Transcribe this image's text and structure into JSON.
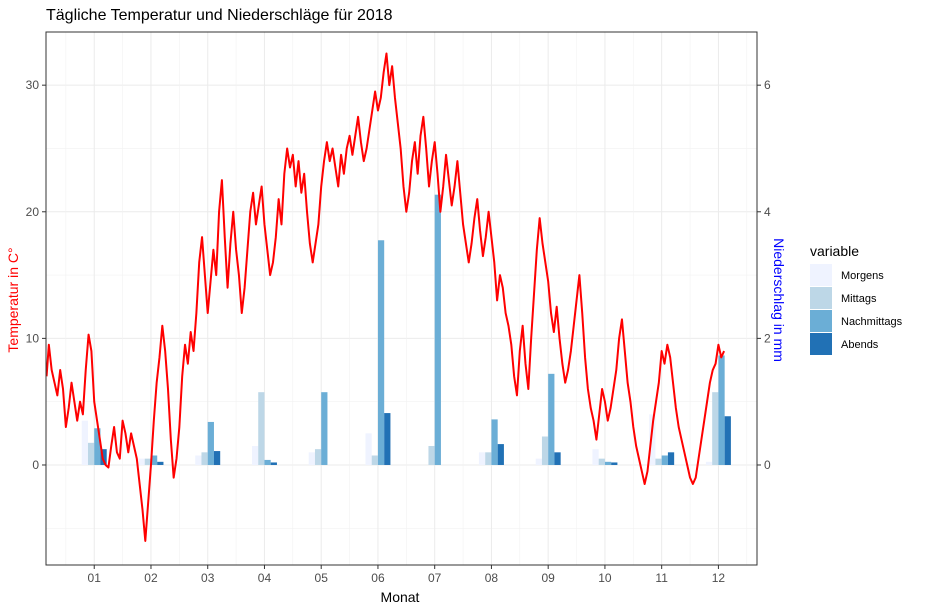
{
  "chart_data": {
    "type": "bar+line",
    "title": "Tägliche Temperatur und Niederschläge für 2018",
    "xlabel": "Monat",
    "ylabel_left": "Temperatur in C°",
    "ylabel_right": "Niederschlag in mm",
    "ylabel_left_color": "#ff0000",
    "ylabel_right_color": "#0000ff",
    "categories": [
      "01",
      "02",
      "03",
      "04",
      "05",
      "06",
      "07",
      "08",
      "09",
      "10",
      "11",
      "12"
    ],
    "x_range": [
      0.15,
      12.68
    ],
    "y_left_range": [
      -7.9,
      34.2
    ],
    "y_left_ticks": [
      0,
      10,
      20,
      30
    ],
    "y_right_range": [
      -1.58,
      6.84
    ],
    "y_right_ticks": [
      0,
      2,
      4,
      6
    ],
    "grid": true,
    "legend": {
      "title": "variable",
      "position": "right",
      "entries": [
        "Morgens",
        "Mittags",
        "Nachmittags",
        "Abends"
      ]
    },
    "bar_series": [
      {
        "name": "Morgens",
        "color": "#eff3ff",
        "values": [
          0.7,
          0.1,
          0.15,
          0.3,
          0.2,
          0.5,
          0.0,
          0.2,
          0.1,
          0.25,
          0.8,
          0.05
        ]
      },
      {
        "name": "Mittags",
        "color": "#bdd7e7",
        "values": [
          0.35,
          0.1,
          0.2,
          1.15,
          0.25,
          0.15,
          0.3,
          0.2,
          0.45,
          0.1,
          0.1,
          1.15
        ]
      },
      {
        "name": "Nachmittags",
        "color": "#6baed6",
        "values": [
          0.58,
          0.15,
          0.68,
          0.08,
          1.15,
          3.55,
          4.27,
          0.72,
          1.44,
          0.05,
          0.15,
          1.73
        ]
      },
      {
        "name": "Abends",
        "color": "#2171b5",
        "values": [
          0.25,
          0.05,
          0.22,
          0.04,
          0.0,
          0.82,
          0.0,
          0.33,
          0.2,
          0.04,
          0.2,
          0.77
        ]
      }
    ],
    "line_series": {
      "name": "Temperatur",
      "color": "#ff0000",
      "points": [
        [
          0.16,
          7.0
        ],
        [
          0.2,
          9.5
        ],
        [
          0.25,
          7.5
        ],
        [
          0.3,
          6.5
        ],
        [
          0.35,
          5.5
        ],
        [
          0.4,
          7.5
        ],
        [
          0.45,
          6.0
        ],
        [
          0.5,
          3.0
        ],
        [
          0.55,
          4.5
        ],
        [
          0.6,
          6.5
        ],
        [
          0.65,
          5.0
        ],
        [
          0.7,
          3.5
        ],
        [
          0.75,
          5.0
        ],
        [
          0.8,
          4.0
        ],
        [
          0.85,
          7.5
        ],
        [
          0.9,
          10.3
        ],
        [
          0.95,
          9.0
        ],
        [
          1.0,
          5.0
        ],
        [
          1.05,
          3.5
        ],
        [
          1.1,
          2.0
        ],
        [
          1.15,
          0.5
        ],
        [
          1.2,
          0.0
        ],
        [
          1.25,
          -0.2
        ],
        [
          1.3,
          1.5
        ],
        [
          1.35,
          3.0
        ],
        [
          1.4,
          1.0
        ],
        [
          1.45,
          0.5
        ],
        [
          1.5,
          3.5
        ],
        [
          1.55,
          2.5
        ],
        [
          1.6,
          1.0
        ],
        [
          1.65,
          2.5
        ],
        [
          1.7,
          1.5
        ],
        [
          1.75,
          0.5
        ],
        [
          1.8,
          -1.5
        ],
        [
          1.85,
          -3.5
        ],
        [
          1.9,
          -6.0
        ],
        [
          1.95,
          -3.0
        ],
        [
          2.0,
          0.0
        ],
        [
          2.05,
          3.5
        ],
        [
          2.1,
          6.5
        ],
        [
          2.15,
          8.5
        ],
        [
          2.2,
          11.0
        ],
        [
          2.25,
          9.0
        ],
        [
          2.3,
          6.0
        ],
        [
          2.35,
          2.0
        ],
        [
          2.4,
          -1.0
        ],
        [
          2.45,
          0.5
        ],
        [
          2.5,
          3.0
        ],
        [
          2.55,
          7.0
        ],
        [
          2.6,
          9.5
        ],
        [
          2.65,
          8.0
        ],
        [
          2.7,
          10.5
        ],
        [
          2.75,
          9.0
        ],
        [
          2.8,
          12.0
        ],
        [
          2.85,
          16.0
        ],
        [
          2.9,
          18.0
        ],
        [
          2.95,
          15.0
        ],
        [
          3.0,
          12.0
        ],
        [
          3.05,
          14.5
        ],
        [
          3.1,
          17.0
        ],
        [
          3.15,
          15.0
        ],
        [
          3.2,
          20.0
        ],
        [
          3.25,
          22.5
        ],
        [
          3.3,
          18.0
        ],
        [
          3.35,
          14.0
        ],
        [
          3.4,
          17.5
        ],
        [
          3.45,
          20.0
        ],
        [
          3.5,
          17.0
        ],
        [
          3.55,
          15.0
        ],
        [
          3.6,
          12.0
        ],
        [
          3.65,
          14.0
        ],
        [
          3.7,
          17.0
        ],
        [
          3.75,
          20.0
        ],
        [
          3.8,
          21.5
        ],
        [
          3.85,
          19.0
        ],
        [
          3.9,
          20.5
        ],
        [
          3.95,
          22.0
        ],
        [
          4.0,
          19.0
        ],
        [
          4.05,
          17.0
        ],
        [
          4.1,
          15.0
        ],
        [
          4.15,
          16.0
        ],
        [
          4.2,
          18.0
        ],
        [
          4.25,
          21.0
        ],
        [
          4.3,
          19.0
        ],
        [
          4.35,
          23.0
        ],
        [
          4.4,
          25.0
        ],
        [
          4.45,
          23.5
        ],
        [
          4.5,
          24.5
        ],
        [
          4.55,
          22.0
        ],
        [
          4.6,
          24.0
        ],
        [
          4.65,
          21.5
        ],
        [
          4.7,
          23.0
        ],
        [
          4.75,
          20.0
        ],
        [
          4.8,
          17.5
        ],
        [
          4.85,
          16.0
        ],
        [
          4.9,
          17.5
        ],
        [
          4.95,
          19.0
        ],
        [
          5.0,
          22.0
        ],
        [
          5.05,
          24.0
        ],
        [
          5.1,
          25.5
        ],
        [
          5.15,
          24.0
        ],
        [
          5.2,
          25.0
        ],
        [
          5.25,
          23.5
        ],
        [
          5.3,
          22.0
        ],
        [
          5.35,
          24.5
        ],
        [
          5.4,
          23.0
        ],
        [
          5.45,
          25.0
        ],
        [
          5.5,
          26.0
        ],
        [
          5.55,
          24.5
        ],
        [
          5.6,
          26.0
        ],
        [
          5.65,
          27.5
        ],
        [
          5.7,
          25.5
        ],
        [
          5.75,
          24.0
        ],
        [
          5.8,
          25.0
        ],
        [
          5.85,
          26.5
        ],
        [
          5.9,
          28.0
        ],
        [
          5.95,
          29.5
        ],
        [
          6.0,
          28.0
        ],
        [
          6.05,
          29.0
        ],
        [
          6.1,
          31.0
        ],
        [
          6.15,
          32.5
        ],
        [
          6.2,
          30.0
        ],
        [
          6.25,
          31.5
        ],
        [
          6.3,
          29.0
        ],
        [
          6.35,
          27.0
        ],
        [
          6.4,
          25.0
        ],
        [
          6.45,
          22.0
        ],
        [
          6.5,
          20.0
        ],
        [
          6.55,
          21.5
        ],
        [
          6.6,
          24.0
        ],
        [
          6.65,
          25.5
        ],
        [
          6.7,
          23.0
        ],
        [
          6.75,
          26.0
        ],
        [
          6.8,
          27.5
        ],
        [
          6.85,
          25.0
        ],
        [
          6.9,
          22.0
        ],
        [
          6.95,
          24.0
        ],
        [
          7.0,
          25.5
        ],
        [
          7.05,
          23.0
        ],
        [
          7.1,
          20.0
        ],
        [
          7.15,
          22.0
        ],
        [
          7.2,
          24.5
        ],
        [
          7.25,
          22.5
        ],
        [
          7.3,
          20.5
        ],
        [
          7.35,
          22.0
        ],
        [
          7.4,
          24.0
        ],
        [
          7.45,
          21.5
        ],
        [
          7.5,
          19.0
        ],
        [
          7.55,
          17.5
        ],
        [
          7.6,
          16.0
        ],
        [
          7.65,
          17.5
        ],
        [
          7.7,
          19.5
        ],
        [
          7.75,
          21.0
        ],
        [
          7.8,
          18.5
        ],
        [
          7.85,
          16.5
        ],
        [
          7.9,
          18.0
        ],
        [
          7.95,
          20.0
        ],
        [
          8.0,
          18.0
        ],
        [
          8.05,
          16.0
        ],
        [
          8.1,
          13.0
        ],
        [
          8.15,
          15.0
        ],
        [
          8.2,
          14.0
        ],
        [
          8.25,
          12.0
        ],
        [
          8.3,
          11.0
        ],
        [
          8.35,
          9.5
        ],
        [
          8.4,
          7.0
        ],
        [
          8.45,
          5.5
        ],
        [
          8.5,
          9.0
        ],
        [
          8.55,
          11.0
        ],
        [
          8.6,
          8.0
        ],
        [
          8.65,
          6.0
        ],
        [
          8.7,
          10.0
        ],
        [
          8.75,
          13.5
        ],
        [
          8.8,
          17.0
        ],
        [
          8.85,
          19.5
        ],
        [
          8.9,
          17.5
        ],
        [
          8.95,
          16.0
        ],
        [
          9.0,
          14.5
        ],
        [
          9.05,
          12.0
        ],
        [
          9.1,
          10.5
        ],
        [
          9.15,
          12.5
        ],
        [
          9.2,
          10.0
        ],
        [
          9.25,
          8.0
        ],
        [
          9.3,
          6.5
        ],
        [
          9.35,
          7.5
        ],
        [
          9.4,
          9.0
        ],
        [
          9.45,
          11.0
        ],
        [
          9.5,
          13.0
        ],
        [
          9.55,
          15.0
        ],
        [
          9.6,
          12.0
        ],
        [
          9.65,
          8.5
        ],
        [
          9.7,
          6.0
        ],
        [
          9.75,
          4.5
        ],
        [
          9.8,
          3.5
        ],
        [
          9.85,
          2.0
        ],
        [
          9.9,
          4.0
        ],
        [
          9.95,
          6.0
        ],
        [
          10.0,
          5.0
        ],
        [
          10.05,
          3.5
        ],
        [
          10.1,
          4.5
        ],
        [
          10.15,
          6.0
        ],
        [
          10.2,
          7.5
        ],
        [
          10.25,
          10.0
        ],
        [
          10.3,
          11.5
        ],
        [
          10.35,
          9.0
        ],
        [
          10.4,
          6.5
        ],
        [
          10.45,
          5.0
        ],
        [
          10.5,
          3.0
        ],
        [
          10.55,
          1.5
        ],
        [
          10.6,
          0.5
        ],
        [
          10.65,
          -0.5
        ],
        [
          10.7,
          -1.5
        ],
        [
          10.75,
          -0.5
        ],
        [
          10.8,
          1.5
        ],
        [
          10.85,
          3.5
        ],
        [
          10.9,
          5.0
        ],
        [
          10.95,
          6.5
        ],
        [
          11.0,
          9.0
        ],
        [
          11.05,
          8.0
        ],
        [
          11.1,
          9.5
        ],
        [
          11.15,
          8.5
        ],
        [
          11.2,
          6.5
        ],
        [
          11.25,
          4.5
        ],
        [
          11.3,
          3.0
        ],
        [
          11.35,
          2.0
        ],
        [
          11.4,
          1.0
        ],
        [
          11.45,
          0.0
        ],
        [
          11.5,
          -1.0
        ],
        [
          11.55,
          -1.5
        ],
        [
          11.6,
          -1.0
        ],
        [
          11.65,
          0.5
        ],
        [
          11.7,
          2.0
        ],
        [
          11.75,
          3.5
        ],
        [
          11.8,
          5.0
        ],
        [
          11.85,
          6.5
        ],
        [
          11.9,
          7.5
        ],
        [
          11.95,
          8.0
        ],
        [
          12.0,
          9.5
        ],
        [
          12.05,
          8.5
        ],
        [
          12.1,
          9.0
        ]
      ]
    }
  }
}
